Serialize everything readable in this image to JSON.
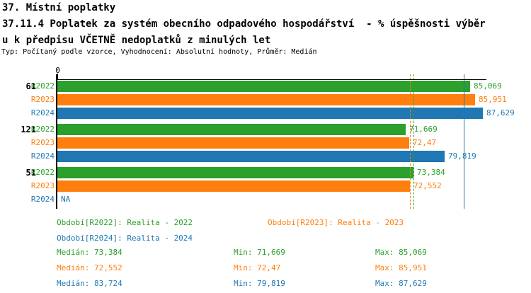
{
  "header": {
    "title_line1": "37. Místní poplatky",
    "title_line2": "37.11.4 Poplatek za systém obecního odpadového hospodářství  - % úspěšnosti výběr",
    "title_line3": "u k předpisu VČETNĚ nedoplatků z minulých let",
    "meta": "Typ: Počítaný podle vzorce, Vyhodnocení: Absolutní hodnoty, Průměr: Medián"
  },
  "chart_data": {
    "type": "bar",
    "orientation": "horizontal",
    "title": "37.11.4 Poplatek za systém obecního odpadového hospodářství - % úspěšnosti výběru k předpisu VČETNĚ nedoplatků z minulých let",
    "axis": {
      "zero_label": "0",
      "min": 0,
      "max": 88.35,
      "grid": false
    },
    "series_colors": {
      "R2022": "#2ca02c",
      "R2023": "#ff7f0e",
      "R2024": "#1f77b4"
    },
    "groups": [
      {
        "label": "61",
        "bars": [
          {
            "series": "R2022",
            "value": 85.069,
            "display": "85,069"
          },
          {
            "series": "R2023",
            "value": 85.951,
            "display": "85,951"
          },
          {
            "series": "R2024",
            "value": 87.629,
            "display": "87,629"
          }
        ]
      },
      {
        "label": "121",
        "bars": [
          {
            "series": "R2022",
            "value": 71.669,
            "display": "71,669"
          },
          {
            "series": "R2023",
            "value": 72.47,
            "display": "72,47"
          },
          {
            "series": "R2024",
            "value": 79.819,
            "display": "79,819"
          }
        ]
      },
      {
        "label": "51",
        "bars": [
          {
            "series": "R2022",
            "value": 73.384,
            "display": "73,384"
          },
          {
            "series": "R2023",
            "value": 72.552,
            "display": "72,552"
          },
          {
            "series": "R2024",
            "value": null,
            "display": "NA"
          }
        ]
      }
    ],
    "median_lines": [
      {
        "series": "R2023",
        "value": 72.552,
        "style": "dashed",
        "color": "#ff7f0e"
      },
      {
        "series": "R2022",
        "value": 73.384,
        "style": "dashed",
        "color": "#2ca02c"
      },
      {
        "series": "R2024",
        "value": 83.724,
        "style": "solid",
        "color": "#1f77b4"
      }
    ]
  },
  "legend": {
    "periods": [
      {
        "text": "Období[R2022]: Realita - 2022",
        "color": "#2ca02c"
      },
      {
        "text": "Období[R2023]: Realita - 2023",
        "color": "#ff7f0e"
      },
      {
        "text": "Období[R2024]: Realita - 2024",
        "color": "#1f77b4"
      }
    ],
    "stats": [
      {
        "median": "Medián: 73,384",
        "min": "Min: 71,669",
        "max": "Max: 85,069",
        "color": "#2ca02c"
      },
      {
        "median": "Medián: 72,552",
        "min": "Min: 72,47",
        "max": "Max: 85,951",
        "color": "#ff7f0e"
      },
      {
        "median": "Medián: 83,724",
        "min": "Min: 79,819",
        "max": "Max: 87,629",
        "color": "#1f77b4"
      }
    ]
  }
}
